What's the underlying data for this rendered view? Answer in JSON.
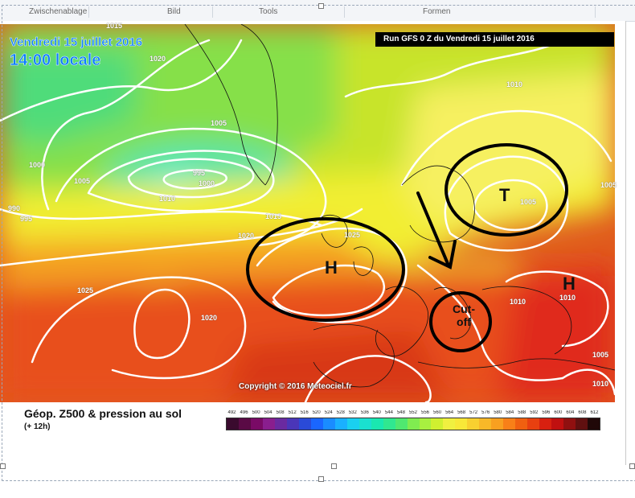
{
  "ribbon": {
    "groups": [
      "Zwischenablage",
      "Bild",
      "Tools",
      "Formen"
    ]
  },
  "map": {
    "date_line": "Vendredi 15 juillet 2016",
    "time_line": "14:00 locale",
    "run_info": "Run GFS 0 Z du Vendredi 15 juillet 2016",
    "copyright": "Copyright © 2016 Meteociel.fr",
    "pressure_labels": [
      "1020",
      "1005",
      "995",
      "1000",
      "1000",
      "1005",
      "990",
      "995",
      "1010",
      "1015",
      "1020",
      "1025",
      "1025",
      "1020",
      "1010",
      "1010",
      "1005",
      "1010",
      "1005",
      "1010",
      "1005",
      "1015"
    ],
    "annotations": {
      "high_west": "H",
      "low_scandinavia": "T",
      "high_east": "H",
      "cutoff_line1": "Cut-",
      "cutoff_line2": "off"
    }
  },
  "legend": {
    "title": "Géop. Z500 & pression au sol",
    "subtitle": "(+ 12h)",
    "scale_values": [
      "492",
      "496",
      "500",
      "504",
      "508",
      "512",
      "516",
      "520",
      "524",
      "528",
      "532",
      "536",
      "540",
      "544",
      "548",
      "552",
      "556",
      "560",
      "564",
      "568",
      "572",
      "576",
      "580",
      "584",
      "588",
      "592",
      "596",
      "600",
      "604",
      "608",
      "612"
    ],
    "scale_colors": [
      "#3a0a2e",
      "#5a0a45",
      "#7a0a66",
      "#8a1e8e",
      "#6a2aa0",
      "#4a36b8",
      "#2a4ad8",
      "#1a66ff",
      "#1a8cff",
      "#1ab0ff",
      "#1ad0f0",
      "#1ae0d0",
      "#1ae8b0",
      "#30e890",
      "#50e870",
      "#80ec50",
      "#a8f040",
      "#d0f030",
      "#f0f040",
      "#f8e838",
      "#f8d030",
      "#f8b828",
      "#f8a020",
      "#f88018",
      "#f06010",
      "#e84010",
      "#d82010",
      "#c01010",
      "#901010",
      "#601010",
      "#200808"
    ]
  }
}
